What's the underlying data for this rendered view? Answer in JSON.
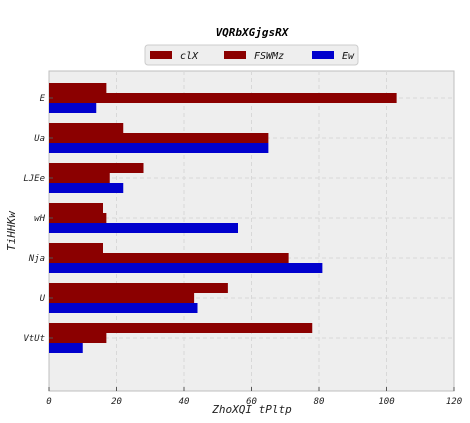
{
  "chart_data": {
    "type": "bar",
    "orientation": "horizontal",
    "title": "VQRbXGjgsRX",
    "xlabel": "ZhoXQI  tPltp",
    "ylabel": "TiHHKw",
    "categories": [
      "E",
      "Ua",
      "LJEe",
      "wH",
      "Nja",
      "U",
      "VtUt"
    ],
    "xlim": [
      0,
      120
    ],
    "xticks": [
      0,
      20,
      40,
      60,
      80,
      100,
      120
    ],
    "grid": true,
    "legend_position": "top-center",
    "series": [
      {
        "name": "clX",
        "color": "#8b0000",
        "values": [
          17,
          22,
          28,
          16,
          16,
          53,
          78
        ]
      },
      {
        "name": "FSWMz",
        "color": "#8b0000",
        "values": [
          103,
          65,
          18,
          17,
          71,
          43,
          17
        ]
      },
      {
        "name": "Ew",
        "color": "#0000cd",
        "values": [
          14,
          65,
          22,
          56,
          81,
          44,
          10
        ]
      }
    ]
  }
}
